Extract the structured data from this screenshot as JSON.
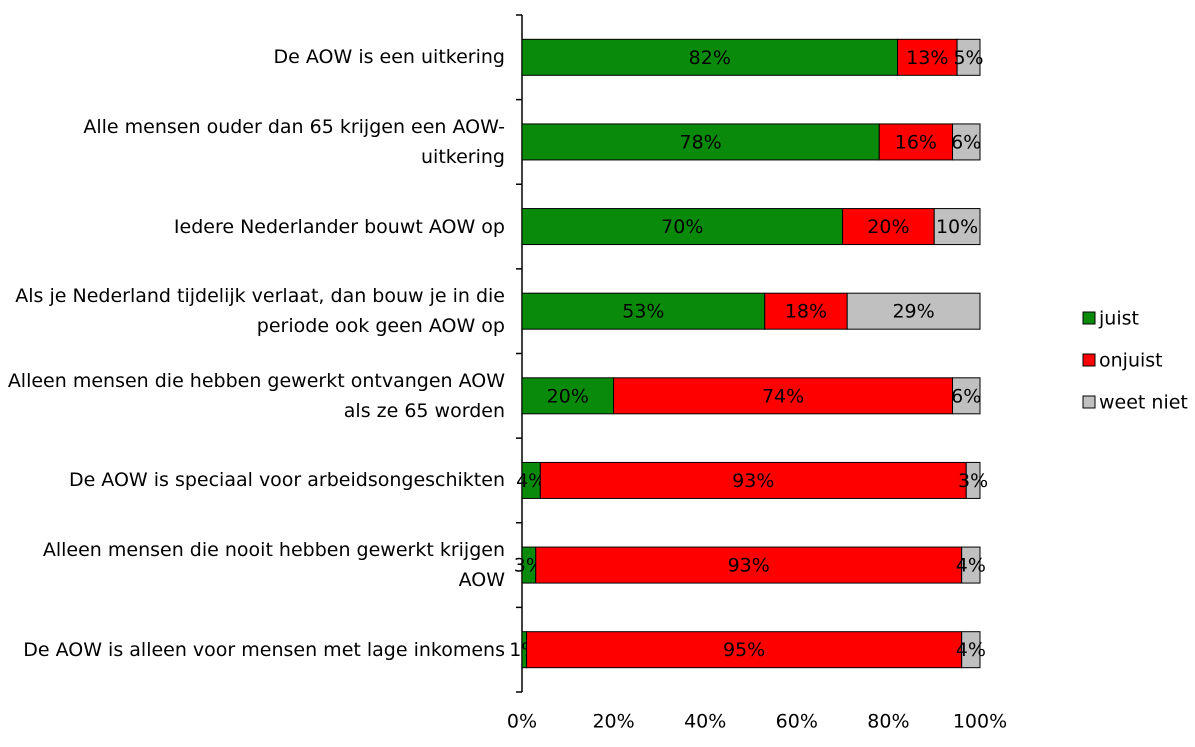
{
  "chart_data": {
    "type": "stacked_barh",
    "categories": [
      "De AOW is een uitkering",
      "Alle mensen ouder dan 65 krijgen een AOW-uitkering",
      "Iedere Nederlander bouwt AOW op",
      "Als je Nederland tijdelijk verlaat, dan bouw je in die periode ook geen AOW op",
      "Alleen mensen die hebben gewerkt ontvangen AOW als ze 65 worden",
      "De AOW is speciaal voor arbeidsongeschikten",
      "Alleen mensen die nooit hebben gewerkt krijgen AOW",
      "De AOW is alleen voor mensen met lage inkomens"
    ],
    "series": [
      {
        "name": "juist",
        "color": "#0a8a0a",
        "values": [
          82,
          78,
          70,
          53,
          20,
          4,
          3,
          1
        ],
        "value_labels": [
          "82%",
          "78%",
          "70%",
          "53%",
          "20%",
          "4%",
          "3%",
          "1%"
        ]
      },
      {
        "name": "onjuist",
        "color": "#ff0000",
        "values": [
          13,
          16,
          20,
          18,
          74,
          93,
          93,
          95
        ],
        "value_labels": [
          "13%",
          "16%",
          "20%",
          "18%",
          "74%",
          "93%",
          "93%",
          "95%"
        ]
      },
      {
        "name": "weet niet",
        "color": "#c0c0c0",
        "values": [
          5,
          6,
          10,
          29,
          6,
          3,
          4,
          4
        ],
        "value_labels": [
          "5%",
          "6%",
          "10%",
          "29%",
          "6%",
          "3%",
          "4%",
          "4%"
        ]
      }
    ],
    "xlim": [
      0,
      100
    ],
    "xticks": [
      {
        "value": 0,
        "label": "0%"
      },
      {
        "value": 20,
        "label": "20%"
      },
      {
        "value": 40,
        "label": "40%"
      },
      {
        "value": 60,
        "label": "60%"
      },
      {
        "value": 80,
        "label": "80%"
      },
      {
        "value": 100,
        "label": "100%"
      }
    ],
    "legend": "right"
  }
}
